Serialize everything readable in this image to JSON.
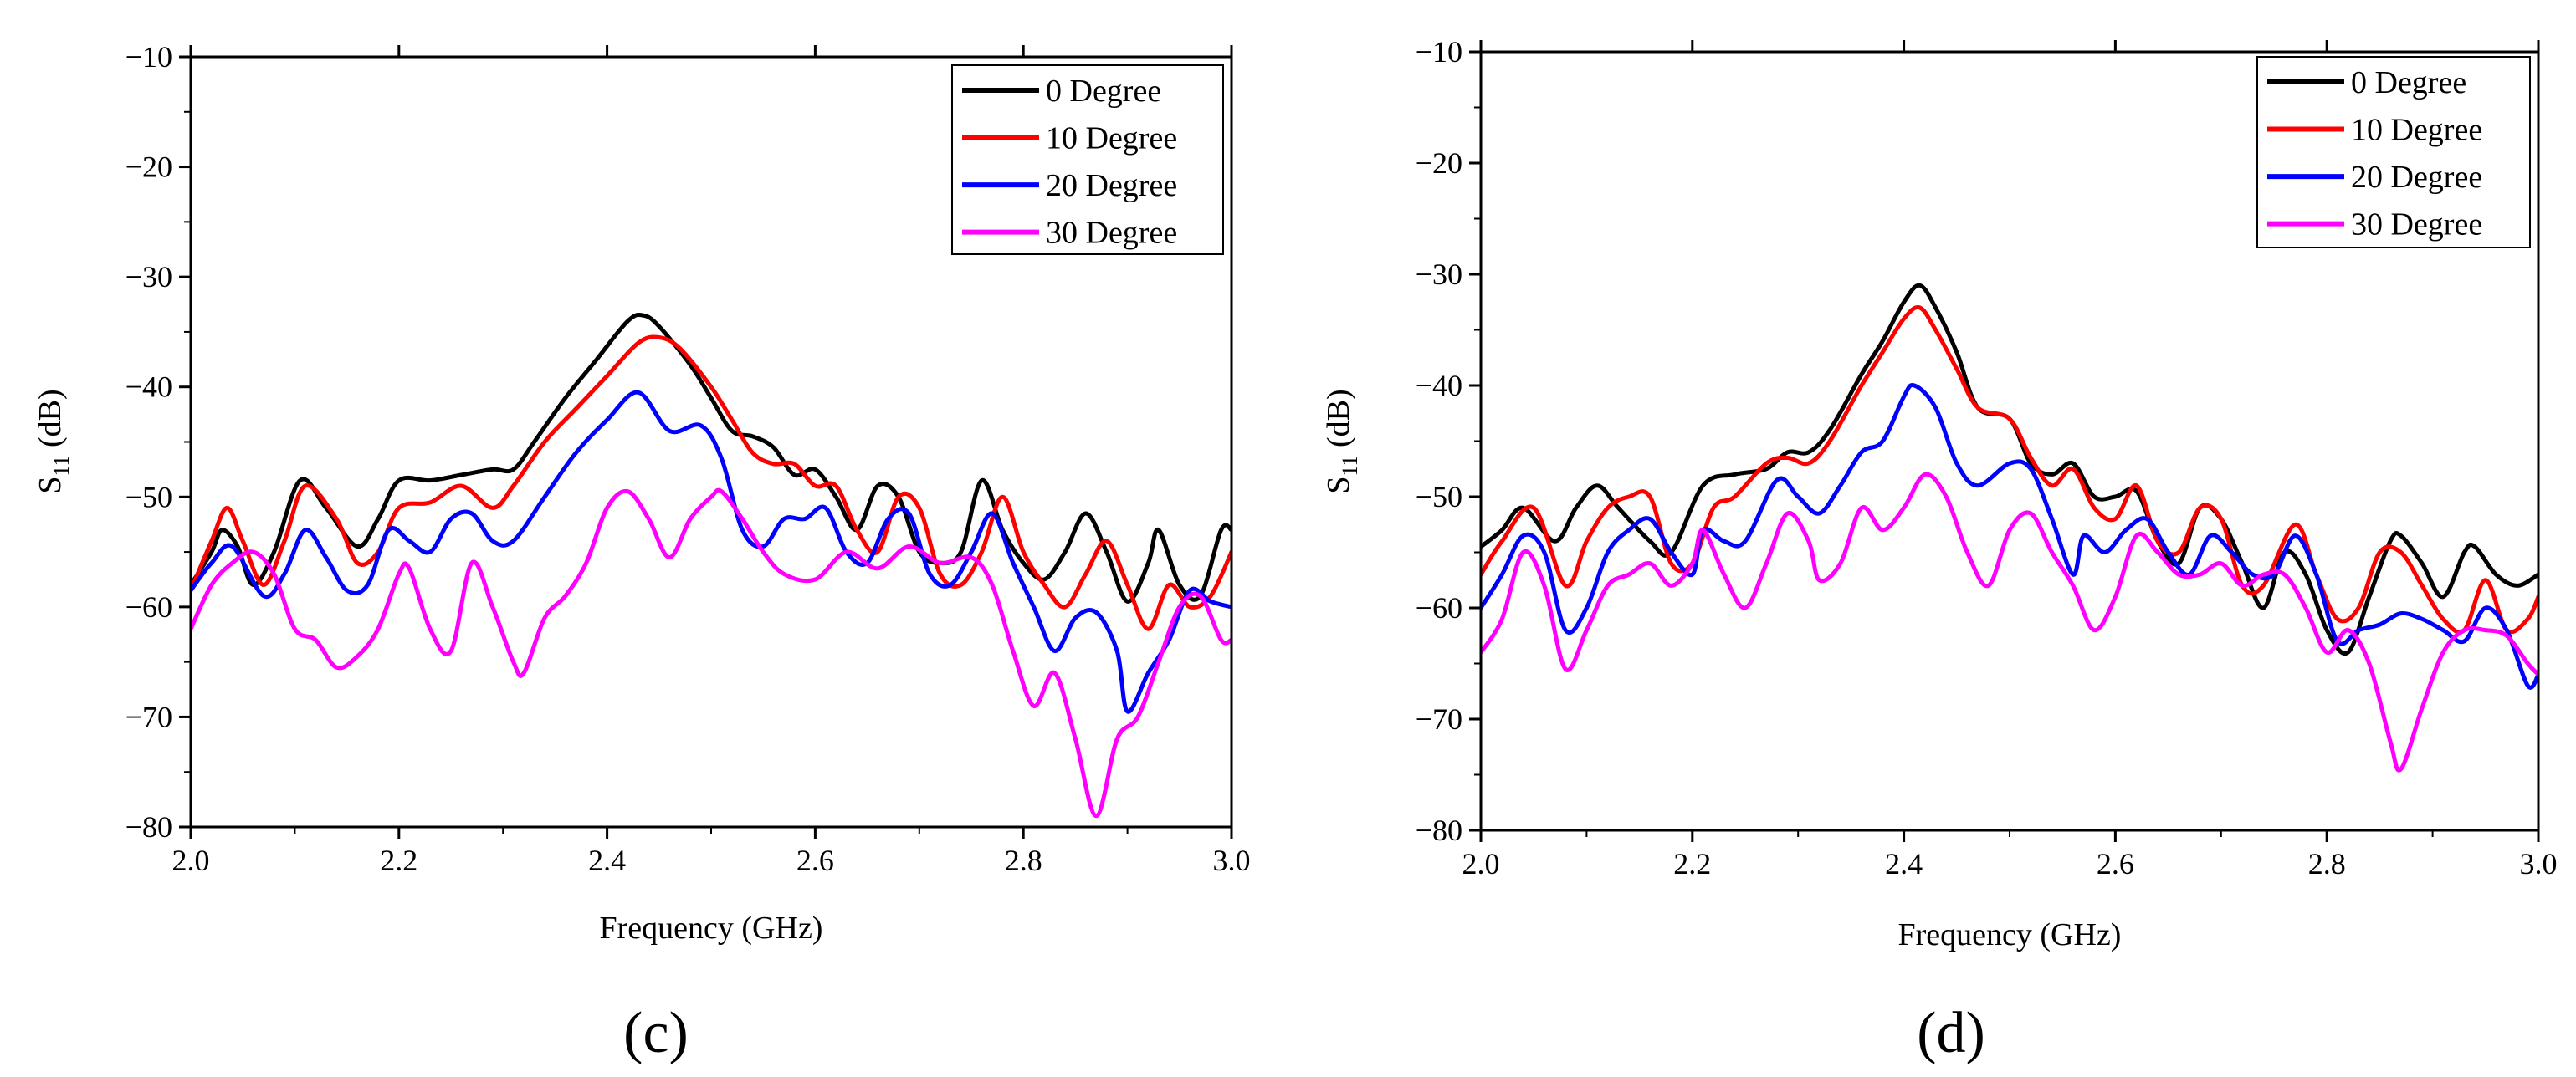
{
  "chart_data": [
    {
      "type": "line",
      "panel_label": "(c)",
      "xlabel": "Frequency (GHz)",
      "ylabel": {
        "base": "S",
        "subscript": "11",
        "rest": " (dB)"
      },
      "xlim": [
        2.0,
        3.0
      ],
      "ylim": [
        -80,
        -10
      ],
      "xticks": [
        2.0,
        2.2,
        2.4,
        2.6,
        2.8,
        3.0
      ],
      "xtick_labels": [
        "2.0",
        "2.2",
        "2.4",
        "2.6",
        "2.8",
        "3.0"
      ],
      "yticks": [
        -80,
        -70,
        -60,
        -50,
        -40,
        -30,
        -20,
        -10
      ],
      "ytick_labels": [
        "−80",
        "−70",
        "−60",
        "−50",
        "−40",
        "−30",
        "−20",
        "−10"
      ],
      "legend_position": "top-right",
      "series": [
        {
          "name": "0 Degree",
          "color": "#000000",
          "x": [
            2.0,
            2.02,
            2.03,
            2.045,
            2.06,
            2.08,
            2.105,
            2.13,
            2.16,
            2.18,
            2.2,
            2.23,
            2.26,
            2.29,
            2.31,
            2.33,
            2.36,
            2.39,
            2.42,
            2.435,
            2.45,
            2.48,
            2.5,
            2.52,
            2.54,
            2.56,
            2.58,
            2.6,
            2.62,
            2.64,
            2.66,
            2.68,
            2.7,
            2.72,
            2.74,
            2.76,
            2.78,
            2.8,
            2.82,
            2.84,
            2.86,
            2.88,
            2.9,
            2.92,
            2.93,
            2.95,
            2.97,
            2.99,
            3.0
          ],
          "y": [
            -58,
            -55,
            -53,
            -54.5,
            -58,
            -55,
            -48.5,
            -51,
            -54.5,
            -52,
            -48.5,
            -48.5,
            -48,
            -47.5,
            -47.5,
            -45,
            -41,
            -37.5,
            -34,
            -33.5,
            -34.5,
            -38,
            -41,
            -44,
            -44.5,
            -45.5,
            -48,
            -47.5,
            -50,
            -53,
            -49,
            -50,
            -55,
            -56,
            -55,
            -48.5,
            -53,
            -56,
            -57.5,
            -55,
            -51.5,
            -55,
            -59.5,
            -56,
            -53,
            -58,
            -59,
            -53,
            -53
          ]
        },
        {
          "name": "10 Degree",
          "color": "#ff0000",
          "x": [
            2.0,
            2.02,
            2.035,
            2.05,
            2.07,
            2.09,
            2.11,
            2.14,
            2.16,
            2.18,
            2.2,
            2.23,
            2.26,
            2.29,
            2.31,
            2.34,
            2.37,
            2.4,
            2.43,
            2.45,
            2.47,
            2.5,
            2.52,
            2.54,
            2.56,
            2.58,
            2.6,
            2.62,
            2.64,
            2.66,
            2.68,
            2.7,
            2.72,
            2.74,
            2.76,
            2.78,
            2.8,
            2.82,
            2.84,
            2.86,
            2.88,
            2.9,
            2.92,
            2.94,
            2.96,
            2.98,
            3.0
          ],
          "y": [
            -58.5,
            -54,
            -51,
            -54,
            -58,
            -54,
            -49,
            -52,
            -56,
            -55,
            -51,
            -50.5,
            -49,
            -51,
            -49,
            -45,
            -42,
            -39,
            -36,
            -35.5,
            -36.5,
            -40,
            -43,
            -46,
            -47,
            -47,
            -49,
            -49,
            -53,
            -55,
            -50,
            -51,
            -57,
            -58,
            -55,
            -50,
            -55,
            -58,
            -60,
            -57,
            -54,
            -58,
            -62,
            -58,
            -60,
            -59,
            -55
          ]
        },
        {
          "name": "20 Degree",
          "color": "#0000ff",
          "x": [
            2.0,
            2.02,
            2.04,
            2.07,
            2.09,
            2.11,
            2.13,
            2.15,
            2.17,
            2.19,
            2.21,
            2.23,
            2.25,
            2.27,
            2.29,
            2.31,
            2.34,
            2.37,
            2.4,
            2.43,
            2.46,
            2.49,
            2.51,
            2.53,
            2.55,
            2.57,
            2.59,
            2.61,
            2.63,
            2.65,
            2.67,
            2.69,
            2.71,
            2.73,
            2.75,
            2.77,
            2.79,
            2.81,
            2.83,
            2.85,
            2.87,
            2.89,
            2.9,
            2.92,
            2.94,
            2.96,
            2.98,
            3.0
          ],
          "y": [
            -58.5,
            -56,
            -54.5,
            -59,
            -57,
            -53,
            -55.5,
            -58.5,
            -58,
            -53,
            -54,
            -55,
            -52,
            -51.5,
            -54,
            -54,
            -50,
            -46,
            -43,
            -40.5,
            -44,
            -43.5,
            -46.5,
            -53,
            -54.5,
            -52,
            -52,
            -51,
            -55,
            -56,
            -52,
            -51.5,
            -57,
            -58,
            -55,
            -51.5,
            -56,
            -60,
            -64,
            -61,
            -60.5,
            -64,
            -69.5,
            -66,
            -63,
            -58.5,
            -59.5,
            -60
          ]
        },
        {
          "name": "30 Degree",
          "color": "#ff00ff",
          "x": [
            2.0,
            2.02,
            2.04,
            2.06,
            2.08,
            2.1,
            2.12,
            2.14,
            2.16,
            2.18,
            2.2,
            2.21,
            2.23,
            2.25,
            2.27,
            2.29,
            2.31,
            2.32,
            2.34,
            2.36,
            2.38,
            2.4,
            2.42,
            2.44,
            2.46,
            2.48,
            2.5,
            2.51,
            2.53,
            2.55,
            2.57,
            2.6,
            2.63,
            2.66,
            2.69,
            2.72,
            2.75,
            2.77,
            2.79,
            2.81,
            2.83,
            2.85,
            2.87,
            2.89,
            2.91,
            2.93,
            2.95,
            2.97,
            2.99,
            3.0
          ],
          "y": [
            -62,
            -58,
            -56,
            -55,
            -57,
            -62,
            -63,
            -65.5,
            -64.5,
            -62,
            -57,
            -56.5,
            -62,
            -64,
            -56,
            -60,
            -65,
            -66,
            -61,
            -59,
            -56,
            -51,
            -49.5,
            -52,
            -55.5,
            -52,
            -50,
            -49.5,
            -52,
            -55,
            -57,
            -57.5,
            -55,
            -56.5,
            -54.5,
            -56,
            -55.5,
            -58,
            -64,
            -69,
            -66,
            -72,
            -79,
            -72,
            -70,
            -65,
            -60,
            -59,
            -63,
            -63
          ]
        }
      ]
    },
    {
      "type": "line",
      "panel_label": "(d)",
      "xlabel": "Frequency (GHz)",
      "ylabel": {
        "base": "S",
        "subscript": "11",
        "rest": " (dB)"
      },
      "xlim": [
        2.0,
        3.0
      ],
      "ylim": [
        -80,
        -10
      ],
      "xticks": [
        2.0,
        2.2,
        2.4,
        2.6,
        2.8,
        3.0
      ],
      "xtick_labels": [
        "2.0",
        "2.2",
        "2.4",
        "2.6",
        "2.8",
        "3.0"
      ],
      "yticks": [
        -80,
        -70,
        -60,
        -50,
        -40,
        -30,
        -20,
        -10
      ],
      "ytick_labels": [
        "−80",
        "−70",
        "−60",
        "−50",
        "−40",
        "−30",
        "−20",
        "−10"
      ],
      "legend_position": "top-right",
      "series": [
        {
          "name": "0 Degree",
          "color": "#000000",
          "x": [
            2.0,
            2.02,
            2.04,
            2.07,
            2.09,
            2.11,
            2.13,
            2.16,
            2.18,
            2.21,
            2.24,
            2.27,
            2.29,
            2.31,
            2.33,
            2.36,
            2.38,
            2.4,
            2.415,
            2.43,
            2.45,
            2.47,
            2.5,
            2.52,
            2.54,
            2.56,
            2.58,
            2.6,
            2.62,
            2.64,
            2.66,
            2.68,
            2.7,
            2.72,
            2.74,
            2.76,
            2.78,
            2.8,
            2.82,
            2.84,
            2.86,
            2.87,
            2.89,
            2.91,
            2.93,
            2.94,
            2.96,
            2.98,
            3.0
          ],
          "y": [
            -54.5,
            -53,
            -51,
            -54,
            -51,
            -49,
            -51,
            -54,
            -55,
            -49,
            -48,
            -47.5,
            -46,
            -46,
            -44,
            -39,
            -36,
            -32.5,
            -31,
            -33,
            -37,
            -42,
            -43,
            -47,
            -48,
            -47,
            -50,
            -50,
            -49.5,
            -54,
            -56,
            -51,
            -52,
            -56,
            -60,
            -55,
            -57,
            -62,
            -64,
            -59,
            -54,
            -53.5,
            -56,
            -59,
            -55,
            -54.5,
            -57,
            -58,
            -57
          ]
        },
        {
          "name": "10 Degree",
          "color": "#ff0000",
          "x": [
            2.0,
            2.02,
            2.05,
            2.08,
            2.1,
            2.12,
            2.14,
            2.16,
            2.18,
            2.2,
            2.22,
            2.24,
            2.27,
            2.29,
            2.31,
            2.33,
            2.36,
            2.38,
            2.4,
            2.415,
            2.43,
            2.45,
            2.47,
            2.5,
            2.52,
            2.54,
            2.56,
            2.58,
            2.6,
            2.62,
            2.64,
            2.66,
            2.68,
            2.7,
            2.72,
            2.74,
            2.77,
            2.79,
            2.81,
            2.83,
            2.85,
            2.87,
            2.89,
            2.91,
            2.93,
            2.95,
            2.97,
            2.99,
            3.0
          ],
          "y": [
            -57,
            -54,
            -51,
            -58,
            -54,
            -51,
            -50,
            -50,
            -56,
            -56,
            -51,
            -50,
            -47,
            -46.5,
            -47,
            -45,
            -40,
            -37,
            -34,
            -33,
            -35,
            -38.5,
            -42,
            -43,
            -46.5,
            -49,
            -47.5,
            -51,
            -52,
            -49,
            -54,
            -55,
            -51,
            -52,
            -58,
            -58,
            -52.5,
            -57,
            -61,
            -60,
            -55,
            -55,
            -58,
            -61,
            -62,
            -57.5,
            -62,
            -61,
            -59
          ]
        },
        {
          "name": "20 Degree",
          "color": "#0000ff",
          "x": [
            2.0,
            2.02,
            2.04,
            2.06,
            2.08,
            2.1,
            2.12,
            2.14,
            2.16,
            2.18,
            2.2,
            2.21,
            2.23,
            2.25,
            2.28,
            2.3,
            2.32,
            2.34,
            2.36,
            2.38,
            2.4,
            2.41,
            2.43,
            2.45,
            2.47,
            2.5,
            2.52,
            2.54,
            2.56,
            2.57,
            2.59,
            2.61,
            2.63,
            2.65,
            2.67,
            2.69,
            2.71,
            2.73,
            2.75,
            2.77,
            2.79,
            2.81,
            2.83,
            2.85,
            2.87,
            2.89,
            2.91,
            2.93,
            2.95,
            2.97,
            2.99,
            3.0
          ],
          "y": [
            -60,
            -57,
            -53.5,
            -55,
            -62,
            -60,
            -55,
            -53,
            -52,
            -55,
            -57,
            -53,
            -54,
            -54,
            -48.5,
            -50,
            -51.5,
            -49,
            -46,
            -45,
            -41,
            -40,
            -42,
            -47,
            -49,
            -47,
            -47.5,
            -52,
            -57,
            -53.5,
            -55,
            -53,
            -52,
            -55,
            -57,
            -53.5,
            -55,
            -57,
            -57,
            -53.5,
            -57,
            -63,
            -62,
            -61.5,
            -60.5,
            -61,
            -62,
            -63,
            -60,
            -62,
            -67,
            -66
          ]
        },
        {
          "name": "30 Degree",
          "color": "#ff00ff",
          "x": [
            2.0,
            2.02,
            2.04,
            2.06,
            2.08,
            2.1,
            2.12,
            2.14,
            2.16,
            2.18,
            2.2,
            2.21,
            2.23,
            2.25,
            2.27,
            2.29,
            2.31,
            2.32,
            2.34,
            2.36,
            2.38,
            2.4,
            2.42,
            2.44,
            2.46,
            2.48,
            2.5,
            2.52,
            2.54,
            2.56,
            2.58,
            2.6,
            2.62,
            2.64,
            2.66,
            2.68,
            2.7,
            2.72,
            2.74,
            2.76,
            2.78,
            2.8,
            2.82,
            2.84,
            2.86,
            2.87,
            2.89,
            2.91,
            2.93,
            2.95,
            2.97,
            2.99,
            3.0
          ],
          "y": [
            -64,
            -61,
            -55,
            -58,
            -65.5,
            -62,
            -58,
            -57,
            -56,
            -58,
            -56,
            -53,
            -57,
            -60,
            -56,
            -51.5,
            -54,
            -57.5,
            -56,
            -51,
            -53,
            -51,
            -48,
            -50,
            -55,
            -58,
            -53,
            -51.5,
            -55,
            -58,
            -62,
            -59,
            -53.5,
            -55,
            -57,
            -57,
            -56,
            -58,
            -57,
            -57,
            -60,
            -64,
            -62,
            -65,
            -72,
            -74.5,
            -69,
            -64,
            -62,
            -62,
            -62.5,
            -65,
            -66
          ]
        }
      ]
    }
  ]
}
